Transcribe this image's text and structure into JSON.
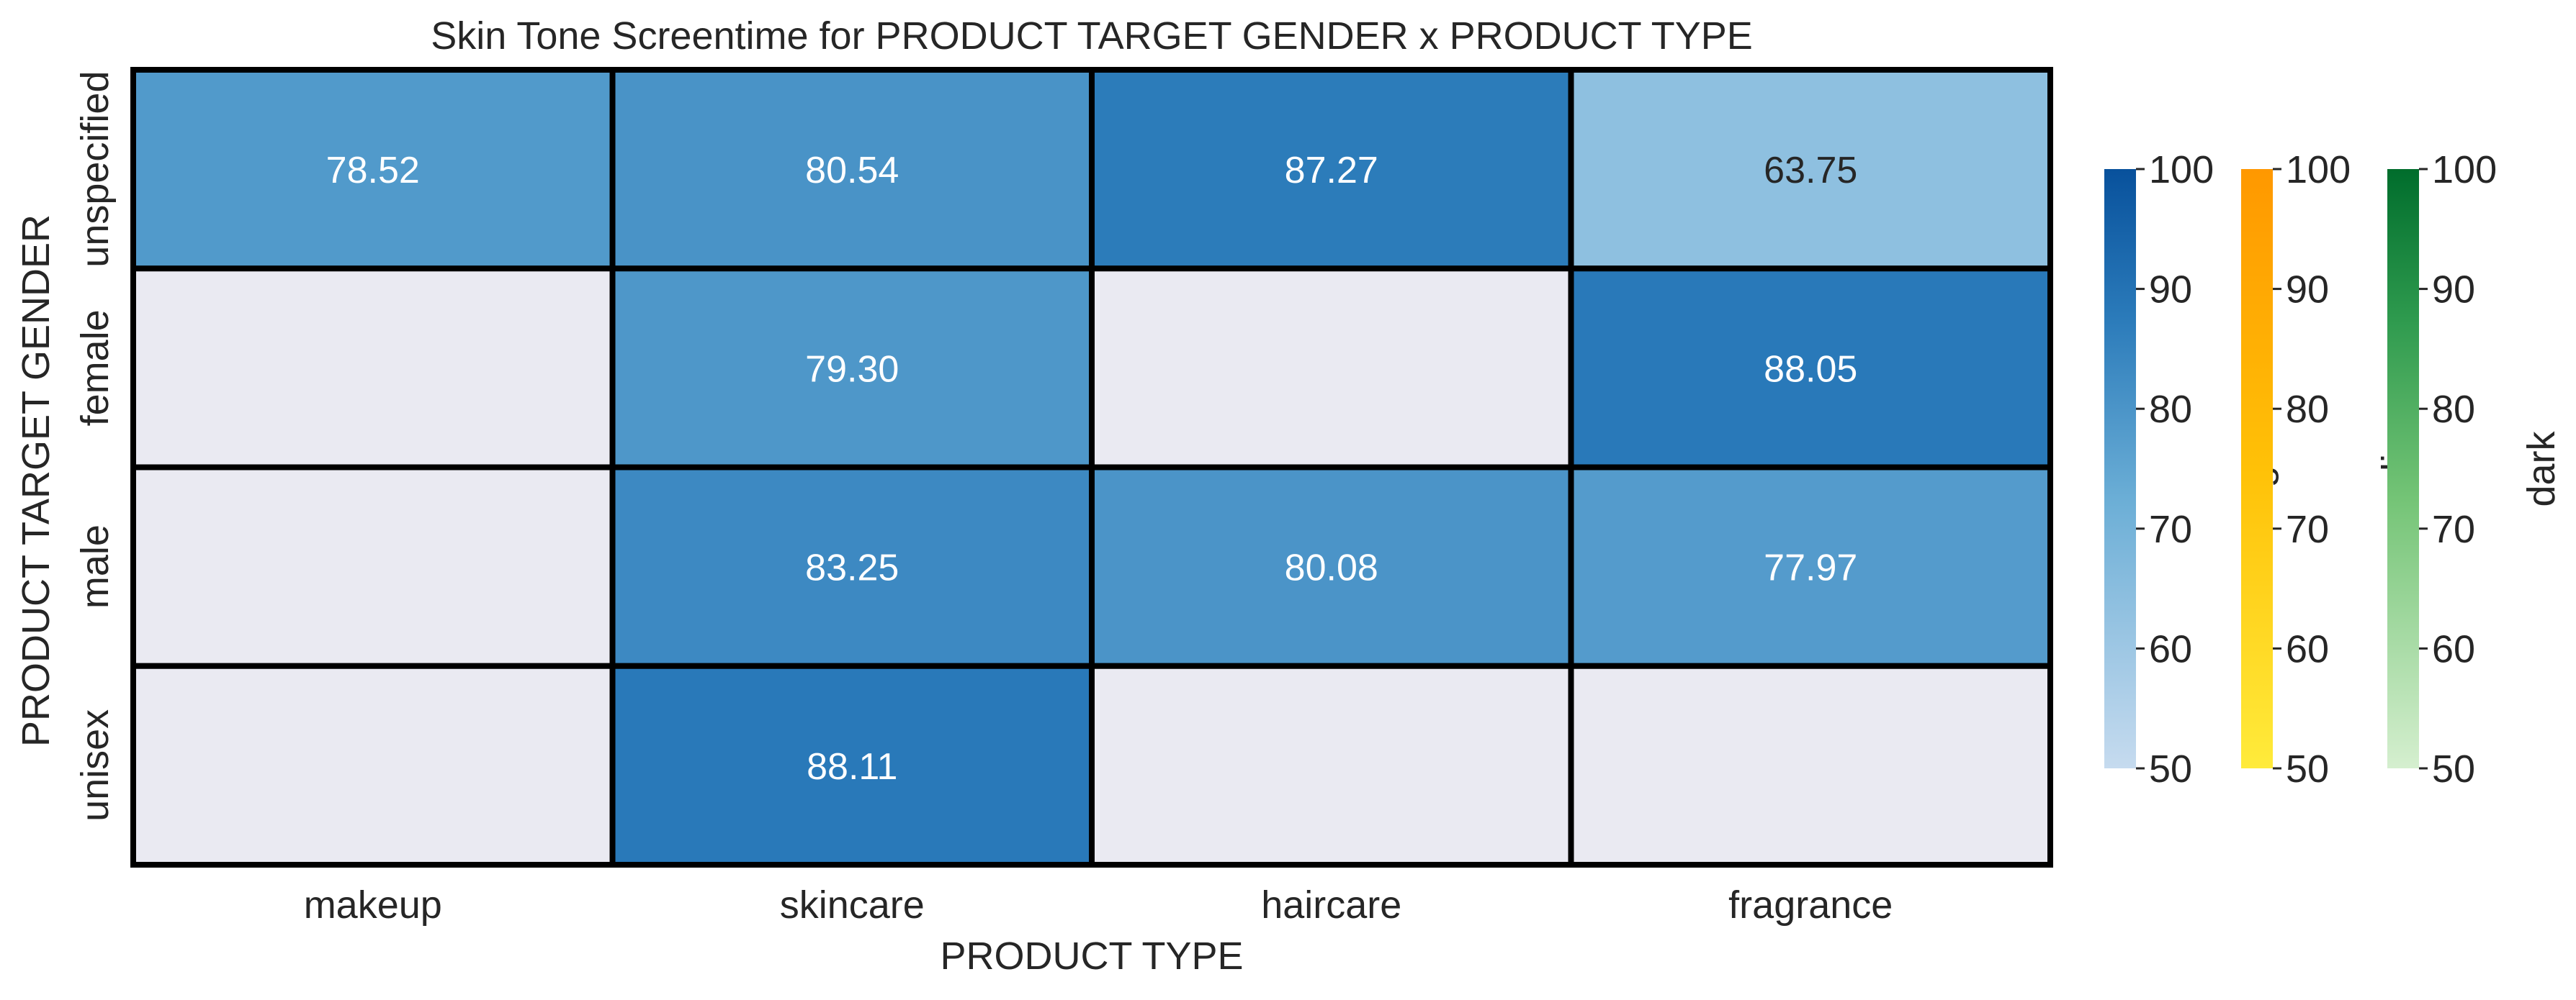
{
  "chart_data": {
    "type": "heatmap",
    "title": "Skin Tone Screentime for PRODUCT TARGET GENDER x PRODUCT TYPE",
    "xlabel": "PRODUCT TYPE",
    "ylabel": "PRODUCT TARGET GENDER",
    "x_categories": [
      "makeup",
      "skincare",
      "haircare",
      "fragrance"
    ],
    "y_categories": [
      "unspecified",
      "female",
      "male",
      "unisex"
    ],
    "value_labels": [
      [
        "78.52",
        "80.54",
        "87.27",
        "63.75"
      ],
      [
        "",
        "79.30",
        "",
        "88.05"
      ],
      [
        "",
        "83.25",
        "80.08",
        "77.97"
      ],
      [
        "",
        "88.11",
        "",
        ""
      ]
    ],
    "values": [
      [
        78.52,
        80.54,
        87.27,
        63.75
      ],
      [
        null,
        79.3,
        null,
        88.05
      ],
      [
        null,
        83.25,
        80.08,
        77.97
      ],
      [
        null,
        88.11,
        null,
        null
      ]
    ],
    "missing_color": "#eaeaf2",
    "color_range": [
      50,
      100
    ],
    "colorbars": [
      {
        "label": "light",
        "colors": [
          "#c6dbef",
          "#6baed6",
          "#2171b5",
          "#08519c"
        ],
        "ticks": [
          "50",
          "60",
          "70",
          "80",
          "90",
          "100"
        ]
      },
      {
        "label": "medium",
        "colors": [
          "#ffeb3b",
          "#ffc107",
          "#ff9800"
        ],
        "ticks": [
          "50",
          "60",
          "70",
          "80",
          "90",
          "100"
        ]
      },
      {
        "label": "dark",
        "colors": [
          "#c7e9c0",
          "#74c476",
          "#238b45",
          "#006d2c"
        ],
        "ticks": [
          "50",
          "60",
          "70",
          "80",
          "90",
          "100"
        ]
      }
    ]
  }
}
